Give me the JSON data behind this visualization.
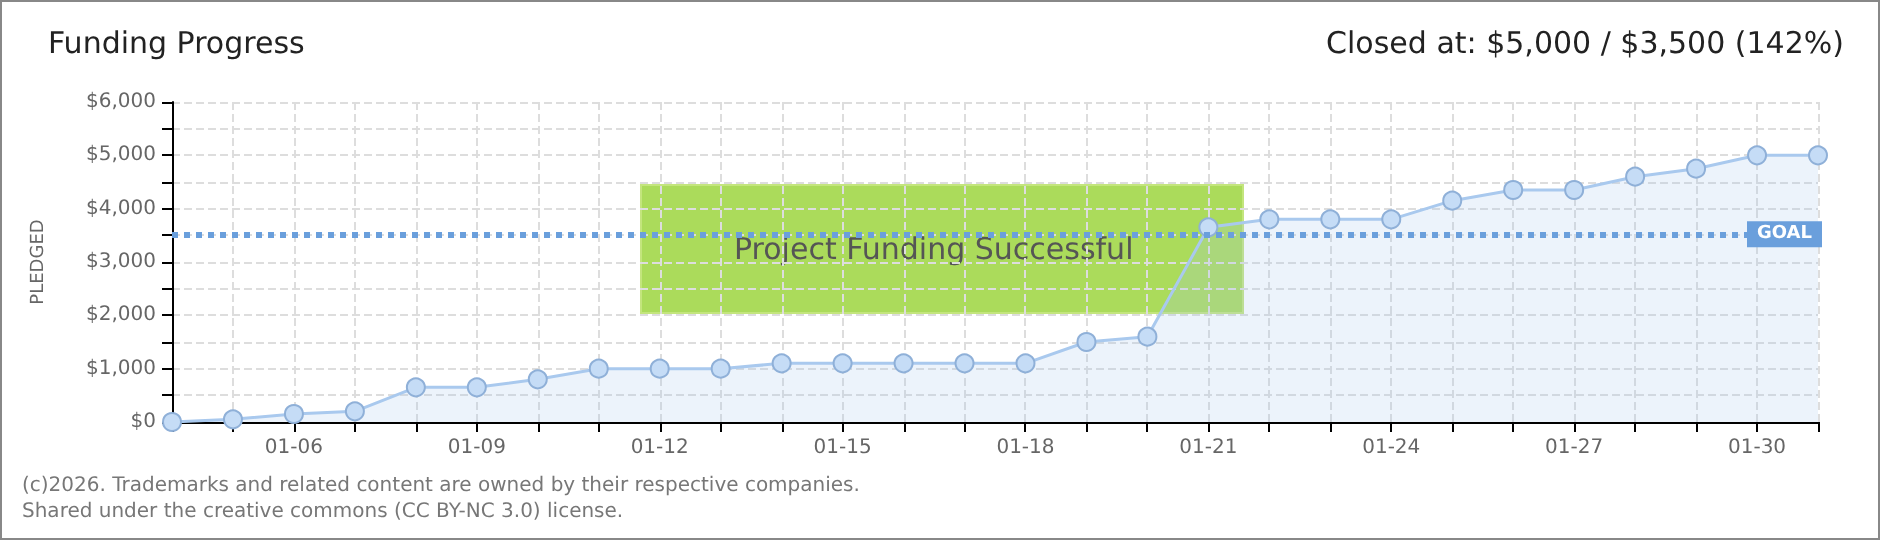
{
  "chart_data": {
    "type": "area",
    "title": "Funding Progress",
    "subtitle": "Closed at: $5,000 / $3,500 (142%)",
    "ylabel": "PLEDGED",
    "categories": [
      null,
      null,
      "01-06",
      null,
      null,
      "01-09",
      null,
      null,
      "01-12",
      null,
      null,
      "01-15",
      null,
      null,
      "01-18",
      null,
      null,
      "01-21",
      null,
      null,
      "01-24",
      null,
      null,
      "01-27",
      null,
      null,
      "01-30",
      null
    ],
    "series": [
      {
        "color": "#a9c9ee",
        "values": [
          0,
          50,
          150,
          200,
          650,
          650,
          800,
          1000,
          1000,
          1000,
          1100,
          1100,
          1100,
          1100,
          1100,
          1500,
          1600,
          3650,
          3800,
          3800,
          3800,
          4150,
          4350,
          4350,
          4600,
          4750,
          5000,
          5000
        ]
      }
    ],
    "ylim": [
      0,
      6000
    ],
    "yticks": [
      {
        "value": 0,
        "label": "$0"
      },
      {
        "value": 500,
        "label": null
      },
      {
        "value": 1000,
        "label": "$1,000"
      },
      {
        "value": 1500,
        "label": null
      },
      {
        "value": 2000,
        "label": "$2,000"
      },
      {
        "value": 2500,
        "label": null
      },
      {
        "value": 3000,
        "label": "$3,000"
      },
      {
        "value": 3500,
        "label": null
      },
      {
        "value": 4000,
        "label": "$4,000"
      },
      {
        "value": 4500,
        "label": null
      },
      {
        "value": 5000,
        "label": "$5,000"
      },
      {
        "value": 5500,
        "label": null
      },
      {
        "value": 6000,
        "label": "$6,000"
      }
    ],
    "ref_lines": [
      {
        "axis": "y",
        "value": 3500,
        "label": "GOAL",
        "color": "#6a9fdc",
        "line_style": "dotted"
      }
    ],
    "annotations": [
      "Project Funding Successful",
      "(c)2026. Trademarks and related content are owned by their respective companies.",
      "Shared under the creative commons (CC BY-NC 3.0) license."
    ],
    "grid": true,
    "marker": "circle",
    "line_style": "solid"
  }
}
